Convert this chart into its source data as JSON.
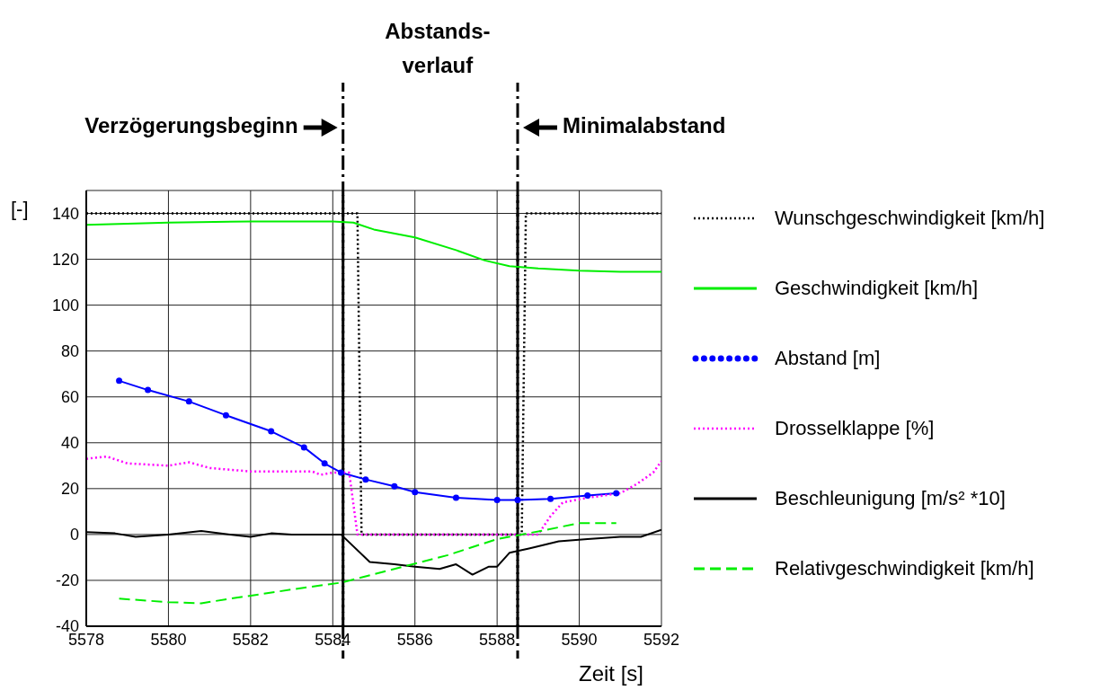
{
  "chart_data": {
    "type": "line",
    "xlabel": "Zeit [s]",
    "ylabel": "[-]",
    "xlim": [
      5578,
      5592
    ],
    "xticks": [
      5578,
      5580,
      5582,
      5584,
      5586,
      5588,
      5590,
      5592
    ],
    "ylim": [
      -40,
      150
    ],
    "yticks": [
      -40,
      -20,
      0,
      20,
      40,
      60,
      80,
      100,
      120,
      140
    ],
    "grid": true,
    "legend": "right",
    "annotations": [
      "Abstands-\nverlauf"
    ],
    "ref_lines": [
      {
        "axis": "x",
        "value": 5584.25,
        "label": "Verzögerungsbeginn",
        "color": "#000000",
        "line_style": "dashdot"
      },
      {
        "axis": "x",
        "value": 5588.5,
        "label": "Minimalabstand",
        "color": "#000000",
        "line_style": "dashdot"
      }
    ],
    "series": [
      {
        "name": "Wunschgeschwindigkeit [km/h]",
        "color": "#000000",
        "line_style": "dotted",
        "marker": "none",
        "x": [
          5578,
          5580,
          5582,
          5584,
          5584.6,
          5584.7,
          5586,
          5588,
          5588.6,
          5588.7,
          5590,
          5592
        ],
        "values": [
          140,
          140,
          140,
          140,
          140,
          0,
          0,
          0,
          0,
          140,
          140,
          140
        ]
      },
      {
        "name": "Geschwindigkeit [km/h]",
        "color": "#00ee00",
        "line_style": "solid",
        "marker": "none",
        "x": [
          5578,
          5580,
          5582,
          5584,
          5584.5,
          5585,
          5586,
          5587,
          5587.7,
          5588.3,
          5589,
          5590,
          5591,
          5592
        ],
        "values": [
          135,
          136,
          136.5,
          136.5,
          136,
          133,
          129.5,
          124,
          119.5,
          117,
          116,
          115,
          114.5,
          114.5
        ]
      },
      {
        "name": "Abstand [m]",
        "color": "#0000ff",
        "line_style": "solid",
        "marker": "circle",
        "x": [
          5578.8,
          5579.5,
          5580.5,
          5581.4,
          5582.5,
          5583.3,
          5583.8,
          5584.2,
          5584.8,
          5585.5,
          5586,
          5587,
          5588,
          5588.5,
          5589.3,
          5590.2,
          5590.9
        ],
        "values": [
          67,
          63,
          58,
          52,
          45,
          38,
          31,
          27,
          24,
          21,
          18.5,
          16,
          15,
          15,
          15.5,
          17,
          18
        ]
      },
      {
        "name": "Drosselklappe [%]",
        "color": "#ff00ff",
        "line_style": "dotted",
        "marker": "none",
        "x": [
          5578,
          5578.5,
          5579,
          5580,
          5580.5,
          5581,
          5582,
          5583.5,
          5583.7,
          5584,
          5584.4,
          5584.6,
          5586,
          5588,
          5589,
          5589.3,
          5589.6,
          5590.2,
          5591,
          5591.4,
          5591.8,
          5592
        ],
        "values": [
          33,
          34,
          31,
          30,
          31.5,
          29,
          27.5,
          27.5,
          26,
          27,
          27,
          0,
          0,
          0,
          0,
          8,
          14,
          16,
          18,
          22,
          27,
          32
        ]
      },
      {
        "name": "Beschleunigung [m/s² *10]",
        "color": "#000000",
        "line_style": "solid",
        "marker": "none",
        "x": [
          5578,
          5578.7,
          5579.2,
          5580,
          5580.8,
          5581.5,
          5582,
          5582.5,
          5583,
          5583.5,
          5584.2,
          5584.9,
          5585.5,
          5586,
          5586.6,
          5587,
          5587.4,
          5587.8,
          5588,
          5588.3,
          5588.8,
          5589.5,
          5590.2,
          5591,
          5591.5,
          5592
        ],
        "values": [
          1,
          0.5,
          -1,
          0,
          1.5,
          0,
          -1,
          0.5,
          0,
          0,
          0,
          -12,
          -13,
          -14,
          -15,
          -13,
          -17.5,
          -14,
          -14,
          -8,
          -6,
          -3,
          -2,
          -1,
          -1,
          2
        ]
      },
      {
        "name": "Relativgeschwindigkeit [km/h]",
        "color": "#00ee00",
        "line_style": "dashed",
        "marker": "none",
        "x": [
          5578.8,
          5580,
          5580.8,
          5581.5,
          5583,
          5584.2,
          5585.5,
          5586.8,
          5588,
          5589.2,
          5590,
          5590.9
        ],
        "values": [
          -28,
          -29.5,
          -30,
          -28,
          -24,
          -21,
          -15,
          -9,
          -2,
          2,
          5,
          5
        ]
      }
    ]
  }
}
